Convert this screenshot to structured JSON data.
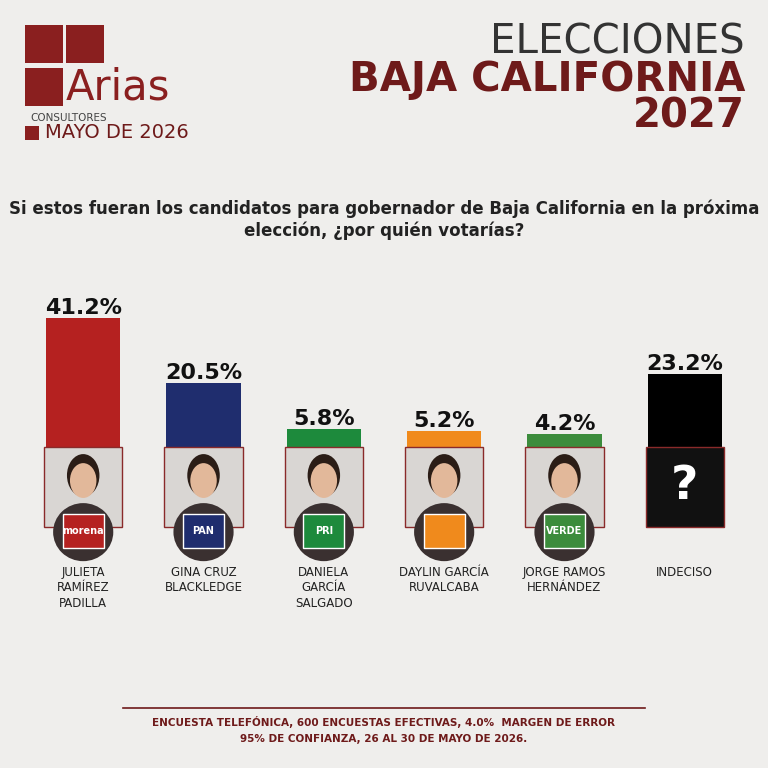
{
  "header": {
    "logo": "Arias",
    "logo_sub": "CONSULTORES",
    "date": "MAYO DE 2026",
    "title_lines": [
      "ELECCIONES",
      "BAJA CALIFORNIA",
      "2027"
    ]
  },
  "chart_data": {
    "type": "bar",
    "title": "Si estos fueran los candidatos para gobernador de Baja California en la próxima elección, ¿por quién votarías?",
    "categories": [
      "JULIETA\nRAMÍREZ\nPADILLA",
      "GINA CRUZ\nBLACKLEDGE",
      "DANIELA\nGARCÍA\nSALGADO",
      "DAYLIN GARCÍA\nRUVALCABA",
      "JORGE RAMOS\nHERNÁNDEZ",
      "INDECISO"
    ],
    "values": [
      41.2,
      20.5,
      5.8,
      5.2,
      4.2,
      23.2
    ],
    "value_labels": [
      "41.2%",
      "20.5%",
      "5.8%",
      "5.2%",
      "4.2%",
      "23.2%"
    ],
    "colors": [
      "#b52120",
      "#1f2d6e",
      "#1d8a3c",
      "#f08a1c",
      "#3c8c3c",
      "#000000"
    ],
    "marks": [
      {
        "badge": "morena"
      },
      {
        "badge": "PAN"
      },
      {
        "badge": "PRI"
      },
      null,
      {
        "badge": "VERDE"
      },
      {
        "symbol": "?"
      }
    ],
    "data_labels": true,
    "tick_labels": false
  },
  "footer": [
    "ENCUESTA TELEFÓNICA, 600 ENCUESTAS EFECTIVAS, 4.0%  MARGEN DE ERROR",
    "95% DE CONFIANZA, 26 AL 30 DE MAYO DE 2026."
  ]
}
